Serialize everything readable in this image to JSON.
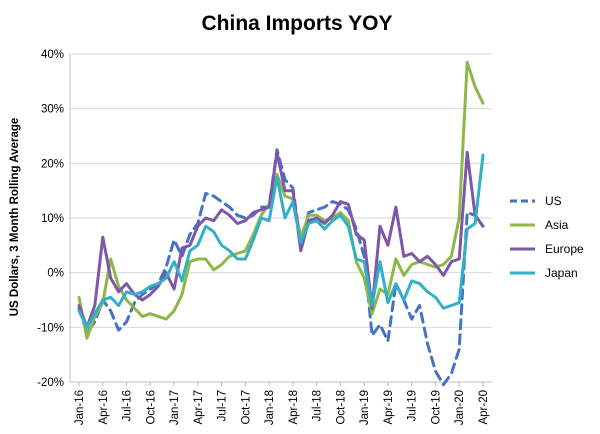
{
  "chart_data": {
    "type": "line",
    "title": "China Imports YOY",
    "xlabel": "",
    "ylabel": "US Dollars, 3 Month Rolling Average",
    "ylim": [
      -20,
      40
    ],
    "y_ticks": [
      "-20%",
      "-10%",
      "0%",
      "10%",
      "20%",
      "30%",
      "40%"
    ],
    "y_tick_values": [
      -20,
      -10,
      0,
      10,
      20,
      30,
      40
    ],
    "x_tick_labels": [
      "Jan-16",
      "Apr-16",
      "Jul-16",
      "Oct-16",
      "Jan-17",
      "Apr-17",
      "Jul-17",
      "Oct-17",
      "Jan-18",
      "Apr-18",
      "Jul-18",
      "Oct-18",
      "Jan-19",
      "Apr-19",
      "Jul-19",
      "Oct-19",
      "Jan-20",
      "Apr-20"
    ],
    "grid": "horizontal",
    "legend_position": "right",
    "x": [
      "Jan-16",
      "Feb-16",
      "Mar-16",
      "Apr-16",
      "May-16",
      "Jun-16",
      "Jul-16",
      "Aug-16",
      "Sep-16",
      "Oct-16",
      "Nov-16",
      "Dec-16",
      "Jan-17",
      "Feb-17",
      "Mar-17",
      "Apr-17",
      "May-17",
      "Jun-17",
      "Jul-17",
      "Aug-17",
      "Sep-17",
      "Oct-17",
      "Nov-17",
      "Dec-17",
      "Jan-18",
      "Feb-18",
      "Mar-18",
      "Apr-18",
      "May-18",
      "Jun-18",
      "Jul-18",
      "Aug-18",
      "Sep-18",
      "Oct-18",
      "Nov-18",
      "Dec-18",
      "Jan-19",
      "Feb-19",
      "Mar-19",
      "Apr-19",
      "May-19",
      "Jun-19",
      "Jul-19",
      "Aug-19",
      "Sep-19",
      "Oct-19",
      "Nov-19",
      "Dec-19",
      "Jan-20",
      "Feb-20",
      "Mar-20",
      "Apr-20"
    ],
    "series": [
      {
        "name": "US",
        "color": "#4472C4",
        "dash": "dashed",
        "values": [
          -6.5,
          -11,
          -9,
          -5,
          -7,
          -10.5,
          -9,
          -5.5,
          -4,
          -3,
          -2,
          1,
          6,
          3,
          7,
          9,
          14.5,
          14,
          13,
          12,
          10.5,
          10,
          10.5,
          12,
          12,
          22.5,
          17,
          15.5,
          5,
          11,
          11.5,
          12,
          13,
          12.5,
          11.5,
          8,
          3,
          -11.5,
          -9.5,
          -12.5,
          -2,
          -5,
          -8.5,
          -6,
          -13,
          -18,
          -20.5,
          -18.5,
          -14,
          11,
          10.5,
          8.5
        ]
      },
      {
        "name": "Asia",
        "color": "#8DB848",
        "dash": "solid",
        "values": [
          -4.5,
          -12,
          -8,
          -5.5,
          2.5,
          -2.5,
          -5,
          -6.5,
          -8,
          -7.5,
          -8,
          -8.5,
          -7,
          -4,
          2,
          2.5,
          2.5,
          0.5,
          1.5,
          3,
          3.5,
          4,
          7,
          10.5,
          12.5,
          18,
          14,
          13.5,
          6.5,
          10.5,
          10.5,
          9.5,
          10,
          11,
          9.5,
          2,
          -1,
          -7.5,
          -3,
          -4,
          2.5,
          -0.5,
          1.5,
          2,
          1.5,
          1,
          1.5,
          3,
          10,
          38.5,
          34,
          31
        ]
      },
      {
        "name": "Europe",
        "color": "#7E57A8",
        "dash": "solid",
        "values": [
          -6,
          -10,
          -6,
          6.5,
          -1,
          -3.5,
          -2,
          -4,
          -5,
          -4,
          -2.5,
          0,
          -3,
          4.5,
          5,
          8.5,
          10,
          9.5,
          11.5,
          10.5,
          9,
          9.5,
          11,
          11.5,
          12,
          22,
          15,
          15,
          4,
          9.5,
          10,
          9,
          10.5,
          13,
          12.5,
          7,
          6,
          -6.5,
          8.5,
          5,
          12,
          3,
          3.5,
          2,
          3,
          1.5,
          -0.5,
          2,
          2.5,
          22,
          10.5,
          8.5
        ]
      },
      {
        "name": "Japan",
        "color": "#31B0C8",
        "dash": "solid",
        "values": [
          -7,
          -10,
          -7.5,
          -5,
          -4.5,
          -6,
          -3.5,
          -4,
          -3.5,
          -2.5,
          -2,
          -1,
          2,
          -1.5,
          4,
          5,
          8.5,
          7.5,
          5,
          4,
          2.5,
          2.5,
          6,
          10,
          9.5,
          17.5,
          10,
          13,
          5.5,
          9,
          9.5,
          8,
          9.5,
          10.5,
          8.5,
          2.5,
          2,
          -6,
          2,
          -5.5,
          -2,
          -5,
          -1.5,
          -2,
          -3.5,
          -4.5,
          -6.5,
          -6,
          -5.5,
          8,
          9,
          21.5
        ]
      }
    ]
  }
}
